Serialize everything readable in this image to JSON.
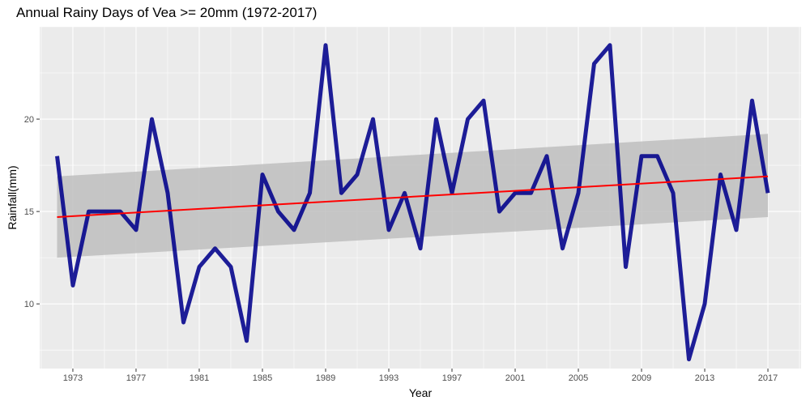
{
  "chart_data": {
    "type": "line",
    "title": "Annual Rainy Days of Vea >= 20mm (1972-2017)",
    "xlabel": "Year",
    "ylabel": "Rainfall(mm)",
    "xlim": [
      1970.9,
      2019.1
    ],
    "ylim": [
      6.5,
      25.0
    ],
    "x_ticks": [
      1973,
      1977,
      1981,
      1985,
      1989,
      1993,
      1997,
      2001,
      2005,
      2009,
      2013,
      2017
    ],
    "y_ticks": [
      10,
      15,
      20
    ],
    "grid": true,
    "series": [
      {
        "values": [
          {
            "x": 1972,
            "y": 18
          },
          {
            "x": 1973,
            "y": 11
          },
          {
            "x": 1974,
            "y": 15
          },
          {
            "x": 1975,
            "y": 15
          },
          {
            "x": 1976,
            "y": 15
          },
          {
            "x": 1977,
            "y": 14
          },
          {
            "x": 1978,
            "y": 20
          },
          {
            "x": 1979,
            "y": 16
          },
          {
            "x": 1980,
            "y": 9
          },
          {
            "x": 1981,
            "y": 12
          },
          {
            "x": 1982,
            "y": 13
          },
          {
            "x": 1983,
            "y": 12
          },
          {
            "x": 1984,
            "y": 8
          },
          {
            "x": 1985,
            "y": 17
          },
          {
            "x": 1986,
            "y": 15
          },
          {
            "x": 1987,
            "y": 14
          },
          {
            "x": 1988,
            "y": 16
          },
          {
            "x": 1989,
            "y": 24
          },
          {
            "x": 1990,
            "y": 16
          },
          {
            "x": 1991,
            "y": 17
          },
          {
            "x": 1992,
            "y": 20
          },
          {
            "x": 1993,
            "y": 14
          },
          {
            "x": 1994,
            "y": 16
          },
          {
            "x": 1995,
            "y": 13
          },
          {
            "x": 1996,
            "y": 20
          },
          {
            "x": 1997,
            "y": 16
          },
          {
            "x": 1998,
            "y": 20
          },
          {
            "x": 1999,
            "y": 21
          },
          {
            "x": 2000,
            "y": 15
          },
          {
            "x": 2001,
            "y": 16
          },
          {
            "x": 2002,
            "y": 16
          },
          {
            "x": 2003,
            "y": 18
          },
          {
            "x": 2004,
            "y": 13
          },
          {
            "x": 2005,
            "y": 16
          },
          {
            "x": 2006,
            "y": 23
          },
          {
            "x": 2007,
            "y": 24
          },
          {
            "x": 2008,
            "y": 12
          },
          {
            "x": 2009,
            "y": 18
          },
          {
            "x": 2010,
            "y": 18
          },
          {
            "x": 2011,
            "y": 16
          },
          {
            "x": 2012,
            "y": 7
          },
          {
            "x": 2013,
            "y": 10
          },
          {
            "x": 2014,
            "y": 17
          },
          {
            "x": 2015,
            "y": 14
          },
          {
            "x": 2016,
            "y": 21
          },
          {
            "x": 2017,
            "y": 16
          }
        ],
        "color": "#00008b"
      }
    ],
    "trend": {
      "x": [
        1972,
        2017
      ],
      "y": [
        14.7,
        16.9
      ],
      "ci_lower": [
        12.5,
        14.7
      ],
      "ci_upper": [
        16.9,
        19.2
      ],
      "color": "#ff0000",
      "ci_color": "#bebebe"
    },
    "panel_background": "#ebebeb",
    "grid_color": "#ffffff"
  }
}
